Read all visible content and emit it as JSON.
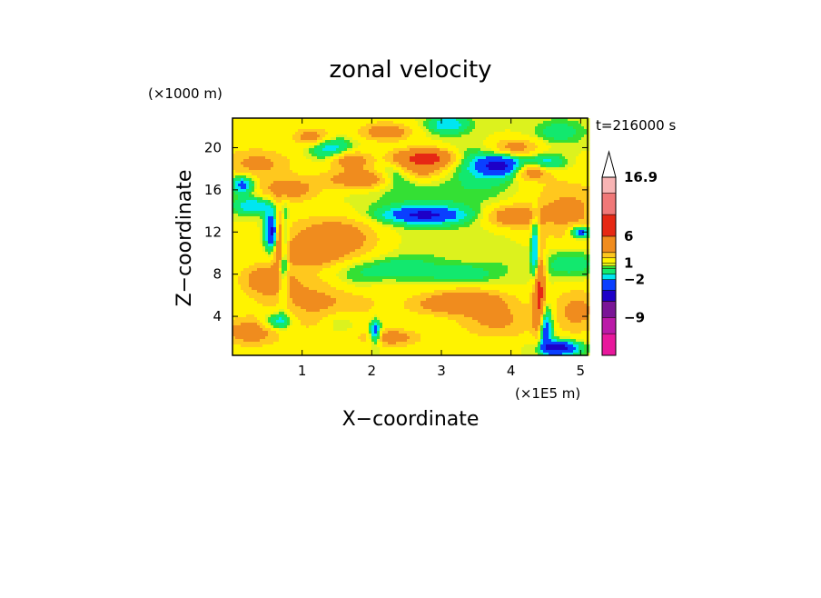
{
  "chart_data": {
    "type": "heatmap",
    "title": "zonal velocity",
    "xlabel": "X−coordinate",
    "ylabel": "Z−coordinate",
    "x_unit": "(×1E5 m)",
    "y_unit": "(×1000 m)",
    "time_label": "t=216000 s",
    "xlim": [
      0,
      5.1
    ],
    "ylim": [
      0.3,
      22.8
    ],
    "x_ticks": [
      "1",
      "2",
      "3",
      "4",
      "5"
    ],
    "y_ticks": [
      "4",
      "8",
      "12",
      "16",
      "20"
    ],
    "x_tick_values": [
      1,
      2,
      3,
      4,
      5
    ],
    "y_tick_values": [
      4,
      8,
      12,
      16,
      20
    ],
    "background_level": 1,
    "colorbar": {
      "labels": [
        "16.9",
        "6",
        "1",
        "−2",
        "−9"
      ],
      "label_values": [
        16.9,
        6,
        1,
        -2,
        -9
      ],
      "levels": [
        {
          "lo": -16,
          "hi": -12,
          "color": "#e8189c"
        },
        {
          "lo": -12,
          "hi": -9,
          "color": "#bb1aa8"
        },
        {
          "lo": -9,
          "hi": -6,
          "color": "#7a1596"
        },
        {
          "lo": -6,
          "hi": -4,
          "color": "#1d00c8"
        },
        {
          "lo": -4,
          "hi": -2,
          "color": "#0a3fff"
        },
        {
          "lo": -2,
          "hi": -1,
          "color": "#00e6f0"
        },
        {
          "lo": -1,
          "hi": 0,
          "color": "#12e86e"
        },
        {
          "lo": 0,
          "hi": 0.5,
          "color": "#34e034"
        },
        {
          "lo": 0.5,
          "hi": 1,
          "color": "#dcf21e"
        },
        {
          "lo": 1,
          "hi": 2,
          "color": "#fff300"
        },
        {
          "lo": 2,
          "hi": 3,
          "color": "#ffc81e"
        },
        {
          "lo": 3,
          "hi": 6,
          "color": "#f08c1e"
        },
        {
          "lo": 6,
          "hi": 10,
          "color": "#e62814"
        },
        {
          "lo": 10,
          "hi": 14,
          "color": "#f07878"
        },
        {
          "lo": 14,
          "hi": 16.9,
          "color": "#f8b4b4"
        }
      ]
    },
    "features": [
      {
        "x": 0.35,
        "z": 18.5,
        "sx": 0.35,
        "sz": 1.0,
        "u": 2.5
      },
      {
        "x": 0.8,
        "z": 16.0,
        "sx": 0.3,
        "sz": 0.8,
        "u": 3.0
      },
      {
        "x": 0.15,
        "z": 16.5,
        "sx": 0.12,
        "sz": 0.6,
        "u": -4.0
      },
      {
        "x": 0.3,
        "z": 14.5,
        "sx": 0.2,
        "sz": 0.6,
        "u": -3.0
      },
      {
        "x": 0.58,
        "z": 12.0,
        "sx": 0.08,
        "sz": 1.3,
        "u": -6.5
      },
      {
        "x": 0.72,
        "z": 10.0,
        "sx": 0.05,
        "sz": 3.0,
        "u": -5.5
      },
      {
        "x": 0.68,
        "z": 11.5,
        "sx": 0.05,
        "sz": 2.0,
        "u": 8.0
      },
      {
        "x": 0.5,
        "z": 7.5,
        "sx": 0.25,
        "sz": 1.0,
        "u": 3.2
      },
      {
        "x": 0.25,
        "z": 2.5,
        "sx": 0.3,
        "sz": 0.9,
        "u": 3.0
      },
      {
        "x": 0.65,
        "z": 3.5,
        "sx": 0.15,
        "sz": 0.6,
        "u": -3.5
      },
      {
        "x": 1.4,
        "z": 20.0,
        "sx": 0.2,
        "sz": 0.7,
        "u": -3.0
      },
      {
        "x": 1.15,
        "z": 21.0,
        "sx": 0.2,
        "sz": 0.6,
        "u": 3.0
      },
      {
        "x": 1.7,
        "z": 18.8,
        "sx": 0.2,
        "sz": 0.6,
        "u": 3.5
      },
      {
        "x": 1.9,
        "z": 17.0,
        "sx": 0.4,
        "sz": 0.6,
        "u": 4.0
      },
      {
        "x": 1.5,
        "z": 11.5,
        "sx": 0.5,
        "sz": 1.4,
        "u": 3.5
      },
      {
        "x": 1.1,
        "z": 10.0,
        "sx": 0.3,
        "sz": 0.8,
        "u": 3.2
      },
      {
        "x": 1.3,
        "z": 5.5,
        "sx": 0.6,
        "sz": 2.0,
        "u": 2.5
      },
      {
        "x": 1.7,
        "z": 7.5,
        "sx": 0.3,
        "sz": 1.2,
        "u": -1.6
      },
      {
        "x": 1.55,
        "z": 3.5,
        "sx": 0.2,
        "sz": 0.8,
        "u": -1.6
      },
      {
        "x": 2.05,
        "z": 2.5,
        "sx": 0.06,
        "sz": 0.8,
        "u": -5.0
      },
      {
        "x": 2.3,
        "z": 2.0,
        "sx": 0.3,
        "sz": 0.6,
        "u": 3.0
      },
      {
        "x": 2.35,
        "z": 17.5,
        "sx": 0.2,
        "sz": 0.8,
        "u": -4.5
      },
      {
        "x": 2.6,
        "z": 19.0,
        "sx": 0.25,
        "sz": 0.6,
        "u": 5.0
      },
      {
        "x": 2.55,
        "z": 17.8,
        "sx": 0.3,
        "sz": 0.6,
        "u": 3.5
      },
      {
        "x": 2.2,
        "z": 21.5,
        "sx": 0.25,
        "sz": 0.6,
        "u": 3.5
      },
      {
        "x": 2.95,
        "z": 19.0,
        "sx": 0.18,
        "sz": 0.6,
        "u": 3.8
      },
      {
        "x": 3.1,
        "z": 22.2,
        "sx": 0.2,
        "sz": 0.6,
        "u": -3.0
      },
      {
        "x": 2.85,
        "z": 15.0,
        "sx": 0.7,
        "sz": 1.5,
        "u": -0.8
      },
      {
        "x": 2.75,
        "z": 13.6,
        "sx": 0.4,
        "sz": 0.55,
        "u": -5.0
      },
      {
        "x": 2.7,
        "z": 11.0,
        "sx": 0.6,
        "sz": 2.0,
        "u": -0.4
      },
      {
        "x": 2.4,
        "z": 8.5,
        "sx": 0.4,
        "sz": 0.8,
        "u": -1.6
      },
      {
        "x": 3.3,
        "z": 8.0,
        "sx": 0.3,
        "sz": 0.6,
        "u": -1.6
      },
      {
        "x": 2.1,
        "z": 12.0,
        "sx": 0.3,
        "sz": 1.5,
        "u": -0.5
      },
      {
        "x": 3.4,
        "z": 5.5,
        "sx": 0.4,
        "sz": 0.8,
        "u": 3.2
      },
      {
        "x": 2.9,
        "z": 5.0,
        "sx": 0.3,
        "sz": 0.7,
        "u": 1.5
      },
      {
        "x": 3.05,
        "z": 3.0,
        "sx": 0.6,
        "sz": 1.0,
        "u": -0.5
      },
      {
        "x": 3.6,
        "z": 18.0,
        "sx": 0.35,
        "sz": 1.5,
        "u": -1.5
      },
      {
        "x": 3.85,
        "z": 18.3,
        "sx": 0.25,
        "sz": 0.7,
        "u": -5.0
      },
      {
        "x": 4.05,
        "z": 20.0,
        "sx": 0.25,
        "sz": 0.6,
        "u": 3.0
      },
      {
        "x": 4.3,
        "z": 17.8,
        "sx": 0.2,
        "sz": 0.6,
        "u": 4.0
      },
      {
        "x": 4.5,
        "z": 18.5,
        "sx": 0.18,
        "sz": 0.6,
        "u": -3.0
      },
      {
        "x": 4.7,
        "z": 21.5,
        "sx": 0.25,
        "sz": 0.8,
        "u": -1.6
      },
      {
        "x": 4.0,
        "z": 13.5,
        "sx": 0.25,
        "sz": 0.7,
        "u": 3.5
      },
      {
        "x": 3.9,
        "z": 9.0,
        "sx": 0.3,
        "sz": 1.5,
        "u": -0.4
      },
      {
        "x": 3.75,
        "z": 3.5,
        "sx": 0.45,
        "sz": 1.2,
        "u": 2.5
      },
      {
        "x": 4.35,
        "z": 10.0,
        "sx": 0.04,
        "sz": 2.5,
        "u": -5.0
      },
      {
        "x": 4.4,
        "z": 6.0,
        "sx": 0.06,
        "sz": 3.0,
        "u": 7.0
      },
      {
        "x": 4.48,
        "z": 3.0,
        "sx": 0.08,
        "sz": 1.5,
        "u": -5.5
      },
      {
        "x": 4.7,
        "z": 1.0,
        "sx": 0.2,
        "sz": 0.5,
        "u": -6.0
      },
      {
        "x": 4.8,
        "z": 14.0,
        "sx": 0.4,
        "sz": 2.0,
        "u": 2.5
      },
      {
        "x": 4.85,
        "z": 9.0,
        "sx": 0.3,
        "sz": 1.0,
        "u": -1.6
      },
      {
        "x": 4.95,
        "z": 4.5,
        "sx": 0.25,
        "sz": 1.5,
        "u": 2.5
      },
      {
        "x": 5.0,
        "z": 12.0,
        "sx": 0.1,
        "sz": 0.4,
        "u": -5.0
      }
    ]
  }
}
